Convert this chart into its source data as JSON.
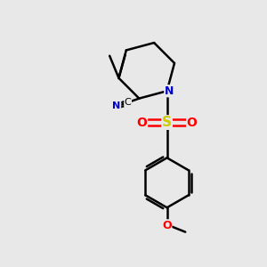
{
  "background_color": "#e8e8e8",
  "bond_color": "#000000",
  "N_color": "#0000cc",
  "O_color": "#ff0000",
  "S_color": "#cccc00",
  "CN_color": "#0000cc",
  "figsize": [
    3.0,
    3.0
  ],
  "dpi": 100,
  "xlim": [
    0,
    10
  ],
  "ylim": [
    0,
    10
  ]
}
